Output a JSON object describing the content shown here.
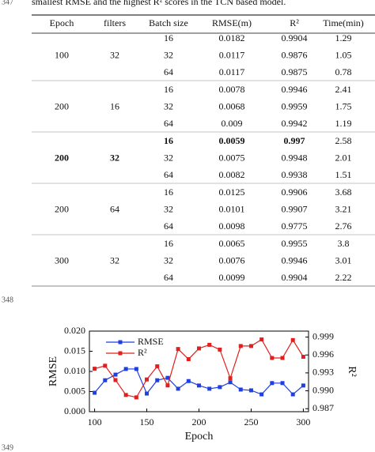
{
  "header": {
    "line_number": "347",
    "text": "smallest RMSE and the highest R² scores in the TCN based model."
  },
  "table": {
    "columns": [
      "Epoch",
      "filters",
      "Batch size",
      "RMSE(m)",
      "R²",
      "Time(min)"
    ],
    "groups": [
      {
        "epoch": "100",
        "filters": "32",
        "rows": [
          [
            "16",
            "0.0182",
            "0.9904",
            "1.29"
          ],
          [
            "32",
            "0.0117",
            "0.9876",
            "1.05"
          ],
          [
            "64",
            "0.0117",
            "0.9875",
            "0.78"
          ]
        ]
      },
      {
        "epoch": "200",
        "filters": "16",
        "rows": [
          [
            "16",
            "0.0078",
            "0.9946",
            "2.41"
          ],
          [
            "32",
            "0.0068",
            "0.9959",
            "1.75"
          ],
          [
            "64",
            "0.009",
            "0.9942",
            "1.19"
          ]
        ]
      },
      {
        "epoch": "200",
        "filters": "32",
        "rows": [
          [
            "16",
            "0.0059",
            "0.997",
            "2.58"
          ],
          [
            "32",
            "0.0075",
            "0.9948",
            "2.01"
          ],
          [
            "64",
            "0.0082",
            "0.9938",
            "1.51"
          ]
        ]
      },
      {
        "epoch": "200",
        "filters": "64",
        "rows": [
          [
            "16",
            "0.0125",
            "0.9906",
            "3.68"
          ],
          [
            "32",
            "0.0101",
            "0.9907",
            "3.21"
          ],
          [
            "64",
            "0.0098",
            "0.9775",
            "2.76"
          ]
        ]
      },
      {
        "epoch": "300",
        "filters": "32",
        "rows": [
          [
            "16",
            "0.0065",
            "0.9955",
            "3.8"
          ],
          [
            "32",
            "0.0076",
            "0.9946",
            "3.01"
          ],
          [
            "64",
            "0.0099",
            "0.9904",
            "2.22"
          ]
        ]
      }
    ]
  },
  "line_numbers": [
    "348",
    "349"
  ],
  "chart_data": {
    "type": "line",
    "xlabel": "Epoch",
    "ylabel": "RMSE",
    "y2label": "R²",
    "x": [
      100,
      110,
      120,
      130,
      140,
      150,
      160,
      170,
      180,
      190,
      200,
      210,
      220,
      230,
      240,
      250,
      260,
      270,
      280,
      290,
      300
    ],
    "series": [
      {
        "name": "RMSE",
        "color": "#1f3fe0",
        "values": [
          0.0047,
          0.0078,
          0.0092,
          0.0106,
          0.0106,
          0.0045,
          0.0078,
          0.0084,
          0.0057,
          0.0076,
          0.0065,
          0.0057,
          0.0061,
          0.0073,
          0.0055,
          0.0053,
          0.0043,
          0.0071,
          0.0071,
          0.0043,
          0.0065
        ]
      },
      {
        "name": "R²",
        "color": "#e0201f",
        "axis": "y2",
        "values": [
          0.9937,
          0.9942,
          0.9918,
          0.9893,
          0.9889,
          0.9919,
          0.9941,
          0.9909,
          0.997,
          0.9953,
          0.9971,
          0.9977,
          0.9969,
          0.9921,
          0.9975,
          0.9975,
          0.9986,
          0.9955,
          0.9955,
          0.9985,
          0.9957
        ]
      }
    ],
    "xlim": [
      95,
      305
    ],
    "xticks": [
      100,
      150,
      200,
      250,
      300
    ],
    "ylim": [
      0,
      0.02
    ],
    "yticks": [
      {
        "value": 0,
        "label": "0.000"
      },
      {
        "value": 0.005,
        "label": "0.005"
      },
      {
        "value": 0.01,
        "label": "0.010"
      },
      {
        "value": 0.015,
        "label": "0.015"
      },
      {
        "value": 0.02,
        "label": "0.020"
      }
    ],
    "y2lim": [
      0.9865,
      1.0
    ],
    "y2ticks": [
      {
        "value": 0.987,
        "label": "0.987"
      },
      {
        "value": 0.99,
        "label": "0.990"
      },
      {
        "value": 0.993,
        "label": "0.993"
      },
      {
        "value": 0.996,
        "label": "0.996"
      },
      {
        "value": 0.999,
        "label": "0.999"
      }
    ]
  }
}
